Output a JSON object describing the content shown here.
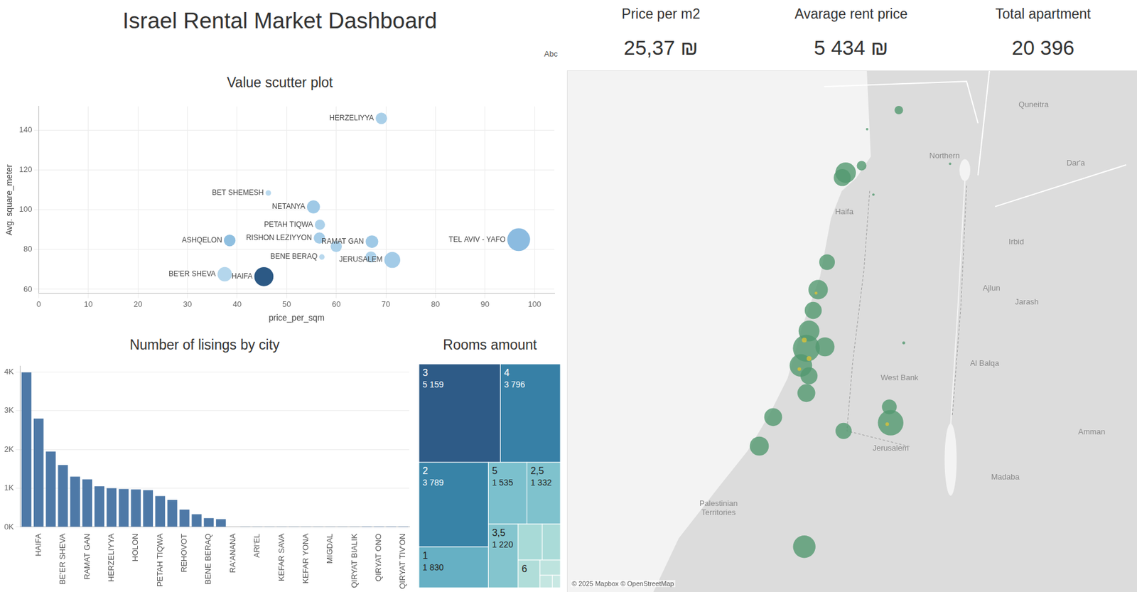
{
  "header": {
    "title": "Israel Rental Market Dashboard",
    "filter_text": "Abc"
  },
  "kpis": [
    {
      "title": "Price per m2",
      "value": "25,37 ₪"
    },
    {
      "title": "Avarage rent price",
      "value": "5 434 ₪"
    },
    {
      "title": "Total apartment",
      "value": "20 396"
    }
  ],
  "chart_data": [
    {
      "type": "bubble",
      "title": "Value scutter plot",
      "x_label": "price_per_sqm",
      "y_label": "Avg. square_meter",
      "point_labels": [
        "HERZELIYYA",
        "BET SHEMESH",
        "NETANYA",
        "PETAH TIQWA",
        "ASHQELON",
        "RISHON LEZIYYON",
        null,
        "RAMAT GAN",
        null,
        "JERUSALEM",
        "BENE BERAQ",
        "TEL AVIV - YAFO",
        "BE'ER SHEVA",
        "HAIFA"
      ],
      "x": [
        69.1,
        46.3,
        55.4,
        56.7,
        38.5,
        56.6,
        60.0,
        67.2,
        67.0,
        71.3,
        57.1,
        96.8,
        37.5,
        45.4
      ],
      "values": [
        146,
        108.5,
        101.5,
        92.5,
        84.6,
        85.8,
        81.6,
        84,
        76.3,
        74.8,
        76.3,
        85,
        67.6,
        66.4
      ],
      "sizes": [
        1000,
        230,
        1300,
        800,
        1050,
        980,
        970,
        1230,
        950,
        1950,
        230,
        3990,
        1600,
        2800
      ],
      "colors": [
        "#a9cfe8",
        "#b9d9ee",
        "#9fc9e6",
        "#acd1ea",
        "#8fbfe0",
        "#a6cde8",
        "#acd1ea",
        "#9fc9e6",
        "#acd1ea",
        "#a3cbe7",
        "#b9d9ee",
        "#8bbbe0",
        "#b4d6ec",
        "#2c5985"
      ],
      "xlim": [
        0,
        104
      ],
      "xticks": [
        0,
        10,
        20,
        30,
        40,
        50,
        60,
        70,
        80,
        90,
        100
      ],
      "ylim": [
        58,
        152
      ],
      "yticks": [
        60,
        80,
        100,
        120,
        140
      ],
      "grid": true
    },
    {
      "type": "bar",
      "title": "Number of lisings by city",
      "categories": [
        null,
        "HAIFA",
        null,
        "BE'ER SHEVA",
        null,
        "RAMAT GAN",
        null,
        "HERZELIYYA",
        null,
        "HOLON",
        null,
        "PETAH TIQWA",
        null,
        "REHOVOT",
        null,
        "BENE BERAQ",
        null,
        "RA'ANANA",
        null,
        "ARI'EL",
        null,
        "KEFAR SAVA",
        null,
        "KEFAR YONA",
        null,
        "MIGDAL",
        null,
        "QIRYAT BIALIK",
        null,
        "QIRYAT ONO",
        null,
        "QIRYAT TIV'ON"
      ],
      "values": [
        3990,
        2800,
        1950,
        1600,
        1300,
        1230,
        1050,
        1000,
        980,
        970,
        950,
        800,
        700,
        450,
        330,
        230,
        200,
        6,
        5,
        4,
        4,
        3,
        3,
        3,
        2,
        2,
        2,
        2,
        1,
        1,
        1,
        1
      ],
      "color": "#4e79a7",
      "ylim": [
        0,
        4150
      ],
      "yticks": [
        {
          "value": 0,
          "label": "0K"
        },
        {
          "value": 1000,
          "label": "1K"
        },
        {
          "value": 2000,
          "label": "2K"
        },
        {
          "value": 3000,
          "label": "3K"
        },
        {
          "value": 4000,
          "label": "4K"
        }
      ],
      "grid": true
    },
    {
      "type": "treemap",
      "title": "Rooms amount",
      "categories": [
        "3",
        "4",
        "2",
        "1",
        "5",
        "2,5",
        "3,5",
        null,
        null,
        "6",
        null,
        null,
        null
      ],
      "values": [
        5159,
        3796,
        3789,
        1830,
        1535,
        1332,
        1220,
        560,
        420,
        390,
        200,
        100,
        65
      ],
      "value_labels": [
        "5 159",
        "3 796",
        "3 789",
        "1 830",
        "1 535",
        "1 332",
        "1 220",
        null,
        null,
        null,
        null,
        null,
        null
      ],
      "colors": [
        "#2e5b87",
        "#3780a6",
        "#3883a7",
        "#66b0c4",
        "#7bc0cd",
        "#7fc2cd",
        "#84c5ce",
        "#a8dad7",
        "#aadbd8",
        "#b0ddd9",
        "#bde3de",
        "#c4e6e1",
        "#c8e8e3"
      ]
    },
    {
      "type": "bubble_map",
      "x": [
        35.26,
        34.98,
        34.962,
        35.064,
        34.882,
        34.835,
        34.809,
        34.787,
        34.773,
        34.871,
        34.744,
        34.787,
        34.773,
        34.598,
        34.525,
        35.217,
        35.21,
        34.969,
        34.762,
        35.093,
        35.126,
        35.53,
        35.286,
        34.762,
        34.787,
        34.736,
        35.199,
        34.824
      ],
      "values": [
        33.115,
        32.847,
        32.826,
        32.877,
        32.464,
        32.346,
        32.257,
        32.169,
        32.095,
        32.101,
        32.021,
        31.977,
        31.903,
        31.8,
        31.676,
        31.776,
        31.844,
        31.741,
        31.245,
        33.033,
        32.753,
        32.885,
        32.118,
        32.13,
        32.051,
        32.006,
        31.77,
        32.331
      ],
      "sizes": [
        50,
        290,
        200,
        64,
        170,
        260,
        200,
        300,
        500,
        250,
        350,
        200,
        220,
        220,
        250,
        450,
        150,
        180,
        350,
        4,
        4,
        4,
        6,
        16,
        16,
        9,
        9,
        6
      ],
      "colors": [
        "#52996fcc",
        "#52996fcc",
        "#52996fcc",
        "#52996fcc",
        "#52996fcc",
        "#52996fcc",
        "#52996fcc",
        "#52996fcc",
        "#52996fcc",
        "#52996fcc",
        "#52996fcc",
        "#52996fcc",
        "#52996fcc",
        "#52996fcc",
        "#52996fcc",
        "#52996fcc",
        "#52996fcc",
        "#52996fcc",
        "#52996fcc",
        "#52996fcc",
        "#52996fcc",
        "#52996fcc",
        "#52996fcc",
        "#d8c23acc",
        "#d8c23acc",
        "#d8c23acc",
        "#d8c23acc",
        "#d8c23acc"
      ],
      "xlim": [
        33.586,
        36.447
      ],
      "ylim": [
        31.106,
        33.225
      ],
      "tick_labels": false,
      "annotations": [
        {
          "lines": [
            "Quneitra"
          ],
          "x": 35.97,
          "y": 33.136
        },
        {
          "lines": [
            "Northern"
          ],
          "x": 35.501,
          "y": 32.918
        },
        {
          "lines": [
            "Dar'a"
          ],
          "x": 36.192,
          "y": 32.888
        },
        {
          "lines": [
            "Haifa"
          ],
          "x": 34.973,
          "y": 32.679
        },
        {
          "lines": [
            "Irbid"
          ],
          "x": 35.879,
          "y": 32.549
        },
        {
          "lines": [
            "Ajlun"
          ],
          "x": 35.748,
          "y": 32.351
        },
        {
          "lines": [
            "Jarash"
          ],
          "x": 35.934,
          "y": 32.292
        },
        {
          "lines": [
            "Al Balqa"
          ],
          "x": 35.712,
          "y": 32.03
        },
        {
          "lines": [
            "West Bank"
          ],
          "x": 35.264,
          "y": 31.968
        },
        {
          "lines": [
            "Amman"
          ],
          "x": 36.276,
          "y": 31.735
        },
        {
          "lines": [
            "Madaba"
          ],
          "x": 35.821,
          "y": 31.543
        },
        {
          "lines": [
            "Jerusalem"
          ],
          "x": 35.217,
          "y": 31.667
        },
        {
          "lines": [
            "Palestinian",
            "Territories"
          ],
          "x": 34.31,
          "y": 31.41
        }
      ],
      "attribution": "© 2025 Mapbox © OpenStreetMap"
    }
  ]
}
